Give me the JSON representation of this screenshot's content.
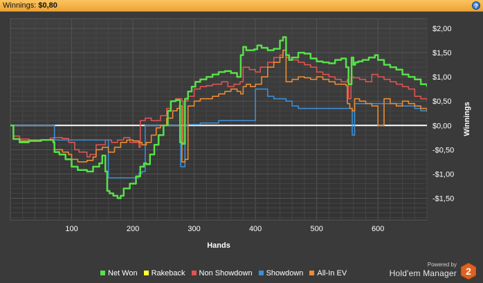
{
  "header": {
    "label": "Winnings:",
    "value": "$0,80"
  },
  "help_icon": "question-mark-icon",
  "brand": {
    "powered": "Powered by",
    "name": "Hold'em Manager",
    "logo_text": "2"
  },
  "chart_data": {
    "type": "line",
    "xlabel": "Hands",
    "ylabel": "Winnings",
    "xlim": [
      0,
      680
    ],
    "ylim": [
      -1.95,
      2.2
    ],
    "grid": true,
    "legend_position": "bottom",
    "x_ticks": [
      100,
      200,
      300,
      400,
      500,
      600
    ],
    "x_tick_labels": [
      "100",
      "200",
      "300",
      "400",
      "500",
      "600"
    ],
    "y_ticks": [
      2,
      1.5,
      1,
      0.5,
      0,
      -0.5,
      -1,
      -1.5
    ],
    "y_tick_labels": [
      "$2,00",
      "$1,50",
      "$1,00",
      "$0,50",
      "$0,00",
      "-$0,50",
      "-$1,00",
      "-$1,50"
    ],
    "series": [
      {
        "name": "Net Won",
        "color": "#57e04a",
        "x": [
          0,
          5,
          15,
          30,
          50,
          70,
          72,
          80,
          90,
          100,
          110,
          125,
          135,
          145,
          150,
          155,
          158,
          162,
          168,
          175,
          180,
          185,
          195,
          205,
          212,
          218,
          222,
          228,
          235,
          242,
          250,
          257,
          262,
          270,
          277,
          280,
          285,
          290,
          296,
          302,
          310,
          320,
          330,
          340,
          350,
          360,
          370,
          376,
          380,
          385,
          392,
          398,
          403,
          410,
          420,
          430,
          440,
          445,
          450,
          455,
          460,
          470,
          480,
          490,
          500,
          510,
          520,
          530,
          540,
          548,
          552,
          557,
          560,
          563,
          568,
          575,
          585,
          595,
          600,
          610,
          620,
          630,
          640,
          650,
          660,
          670,
          680
        ],
        "y": [
          0,
          -0.28,
          -0.35,
          -0.32,
          -0.3,
          -0.35,
          -0.55,
          -0.6,
          -0.7,
          -0.85,
          -0.92,
          -0.95,
          -0.85,
          -0.78,
          -0.62,
          -0.95,
          -1.35,
          -1.4,
          -1.45,
          -1.5,
          -1.45,
          -1.3,
          -1.2,
          -1.05,
          -0.85,
          -0.78,
          -0.8,
          -0.6,
          -0.4,
          -0.2,
          0.0,
          0.3,
          0.5,
          0.52,
          -0.35,
          -0.38,
          0.55,
          0.7,
          0.8,
          0.9,
          0.95,
          1.0,
          1.05,
          1.1,
          1.12,
          1.08,
          1.0,
          1.45,
          1.62,
          1.55,
          1.55,
          1.57,
          1.65,
          1.6,
          1.55,
          1.58,
          1.75,
          1.82,
          1.45,
          1.35,
          1.4,
          1.5,
          1.48,
          1.38,
          1.32,
          1.3,
          1.28,
          1.35,
          1.38,
          1.2,
          0.85,
          1.4,
          1.25,
          1.3,
          1.32,
          1.35,
          1.4,
          1.45,
          1.35,
          1.25,
          1.2,
          1.15,
          1.05,
          1.0,
          0.95,
          0.85,
          0.8
        ]
      },
      {
        "name": "Rakeback",
        "color": "#ffff33",
        "x": [],
        "y": []
      },
      {
        "name": "Non Showdown",
        "color": "#e05454",
        "x": [
          0,
          5,
          15,
          30,
          50,
          65,
          70,
          85,
          95,
          105,
          112,
          125,
          130,
          140,
          155,
          165,
          175,
          185,
          195,
          210,
          212,
          220,
          230,
          245,
          255,
          262,
          270,
          280,
          282,
          285,
          290,
          300,
          310,
          320,
          330,
          345,
          355,
          365,
          375,
          380,
          390,
          400,
          408,
          420,
          430,
          440,
          445,
          450,
          460,
          470,
          480,
          490,
          500,
          510,
          520,
          530,
          540,
          550,
          552,
          556,
          560,
          570,
          580,
          590,
          600,
          610,
          620,
          630,
          640,
          650,
          660,
          670,
          680
        ],
        "y": [
          0,
          -0.22,
          -0.28,
          -0.3,
          -0.3,
          -0.26,
          -0.25,
          -0.27,
          -0.35,
          -0.5,
          -0.55,
          -0.65,
          -0.6,
          -0.4,
          -0.3,
          -0.35,
          -0.3,
          -0.25,
          -0.35,
          -0.45,
          0.1,
          0.15,
          0.1,
          0.2,
          0.35,
          0.5,
          0.55,
          0.5,
          -0.35,
          0.5,
          0.6,
          0.75,
          0.8,
          0.82,
          0.85,
          0.9,
          0.8,
          0.85,
          0.9,
          1.2,
          1.15,
          1.1,
          1.2,
          1.3,
          1.4,
          1.45,
          1.55,
          1.4,
          1.35,
          1.3,
          1.25,
          1.2,
          1.1,
          1.05,
          1.0,
          0.95,
          0.9,
          0.95,
          0.55,
          1.0,
          0.98,
          0.95,
          0.9,
          1.05,
          1.0,
          0.95,
          0.9,
          0.85,
          0.8,
          0.75,
          0.6,
          0.55,
          0.52
        ]
      },
      {
        "name": "Showdown",
        "color": "#3b8fd8",
        "x": [
          0,
          70,
          72,
          85,
          100,
          130,
          155,
          160,
          190,
          205,
          210,
          215,
          220,
          240,
          270,
          278,
          285,
          290,
          310,
          340,
          400,
          405,
          420,
          430,
          450,
          460,
          470,
          480,
          500,
          540,
          555,
          558,
          562,
          580,
          600,
          640,
          660,
          670,
          680
        ],
        "y": [
          0,
          0,
          -0.3,
          -0.3,
          -0.3,
          -0.3,
          -0.3,
          -1.08,
          -1.08,
          -1.08,
          -0.98,
          -0.95,
          0.0,
          0.0,
          0.0,
          -0.85,
          0.0,
          0.02,
          0.05,
          0.1,
          0.75,
          0.75,
          0.6,
          0.55,
          0.5,
          0.4,
          0.35,
          0.35,
          0.35,
          0.35,
          0.35,
          -0.2,
          0.45,
          0.45,
          0.45,
          0.4,
          0.35,
          0.3,
          0.28
        ]
      },
      {
        "name": "All-In EV",
        "color": "#ed8c32",
        "x": [
          0,
          5,
          15,
          30,
          50,
          70,
          72,
          85,
          95,
          100,
          110,
          125,
          135,
          140,
          150,
          160,
          170,
          180,
          190,
          200,
          210,
          215,
          222,
          230,
          238,
          245,
          255,
          265,
          272,
          276,
          280,
          285,
          290,
          300,
          310,
          320,
          330,
          340,
          350,
          360,
          370,
          376,
          380,
          385,
          392,
          400,
          410,
          420,
          430,
          440,
          445,
          450,
          460,
          470,
          480,
          490,
          500,
          510,
          520,
          530,
          540,
          548,
          550,
          554,
          558,
          562,
          570,
          580,
          590,
          600,
          610,
          620,
          630,
          640,
          650,
          660,
          670,
          680
        ],
        "y": [
          0,
          -0.28,
          -0.32,
          -0.3,
          -0.3,
          -0.33,
          -0.5,
          -0.55,
          -0.6,
          -0.7,
          -0.75,
          -0.72,
          -0.65,
          -0.5,
          -0.45,
          -0.55,
          -0.45,
          -0.35,
          -0.3,
          -0.32,
          -0.35,
          -0.4,
          -0.35,
          -0.2,
          -0.05,
          0.0,
          0.15,
          0.3,
          0.35,
          0.4,
          -0.75,
          -0.7,
          0.4,
          0.5,
          0.55,
          0.55,
          0.6,
          0.65,
          0.7,
          0.75,
          0.7,
          0.65,
          0.8,
          0.85,
          0.8,
          0.85,
          1.0,
          1.2,
          1.3,
          1.4,
          1.55,
          0.9,
          0.95,
          1.0,
          0.98,
          0.95,
          1.0,
          0.95,
          0.9,
          0.85,
          0.85,
          0.82,
          0.45,
          0.35,
          0.3,
          0.55,
          0.5,
          0.45,
          0.4,
          0.0,
          0.55,
          0.45,
          0.4,
          0.5,
          0.45,
          0.4,
          0.35,
          0.3
        ]
      }
    ]
  }
}
